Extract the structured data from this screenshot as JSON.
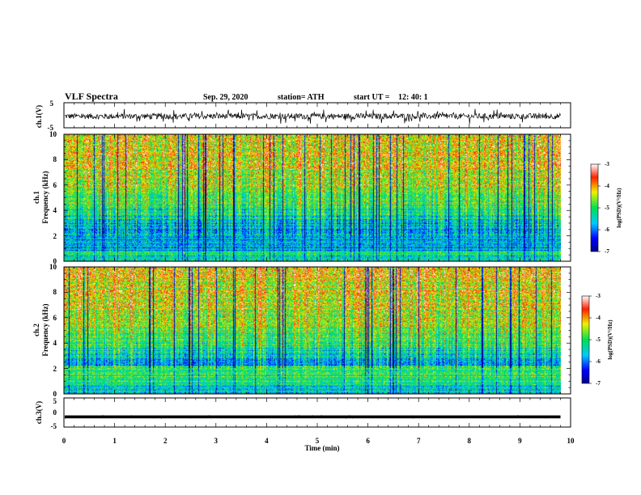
{
  "header": {
    "title": "VLF Spectra",
    "date": "Sep. 29, 2020",
    "station": "station= ATH",
    "start": "start  UT =",
    "start_time": "12: 40: 1"
  },
  "chart_data": [
    {
      "type": "line",
      "name": "ch1-waveform",
      "ylabel": "ch.1(V)",
      "ylim": [
        -5,
        5
      ],
      "yticks": [
        "5",
        "-5"
      ],
      "xlim": [
        0,
        10
      ],
      "signal": {
        "mean": -0.4,
        "amplitude": 1.6,
        "end_min": 9.8
      }
    },
    {
      "type": "heatmap",
      "name": "ch1-spectrogram",
      "ylabel": "ch.1",
      "ylabel2": "Frequency  (kHz)",
      "ylim": [
        0,
        10
      ],
      "yticks": [
        "0",
        "2",
        "4",
        "6",
        "8",
        "10"
      ],
      "xlim": [
        0,
        10
      ],
      "end_min": 9.8,
      "colorbar": {
        "label": "log(PSD)(V²/Hz)",
        "range": [
          -7,
          -3
        ],
        "ticks": [
          "-3",
          "-4",
          "-5",
          "-6",
          "-7"
        ]
      }
    },
    {
      "type": "heatmap",
      "name": "ch2-spectrogram",
      "ylabel": "ch.2",
      "ylabel2": "Frequency  (kHz)",
      "ylim": [
        0,
        10
      ],
      "yticks": [
        "0",
        "2",
        "4",
        "6",
        "8",
        "10"
      ],
      "xlim": [
        0,
        10
      ],
      "end_min": 9.8,
      "colorbar": {
        "label": "log(PSD)(V²/Hz)",
        "range": [
          -7,
          -3
        ],
        "ticks": [
          "-3",
          "-4",
          "-5",
          "-6",
          "-7"
        ]
      }
    },
    {
      "type": "line",
      "name": "ch3-waveform",
      "ylabel": "ch.3(V)",
      "ylim": [
        -5,
        5
      ],
      "yticks": [
        "5",
        "0",
        "-5"
      ],
      "xlim": [
        0,
        10
      ],
      "signal": {
        "mean": -1.5,
        "amplitude": 0.25,
        "end_min": 9.8
      }
    }
  ],
  "xaxis": {
    "label": "Time  (min)",
    "ticks": [
      "0",
      "1",
      "2",
      "3",
      "4",
      "5",
      "6",
      "7",
      "8",
      "9",
      "10"
    ]
  }
}
